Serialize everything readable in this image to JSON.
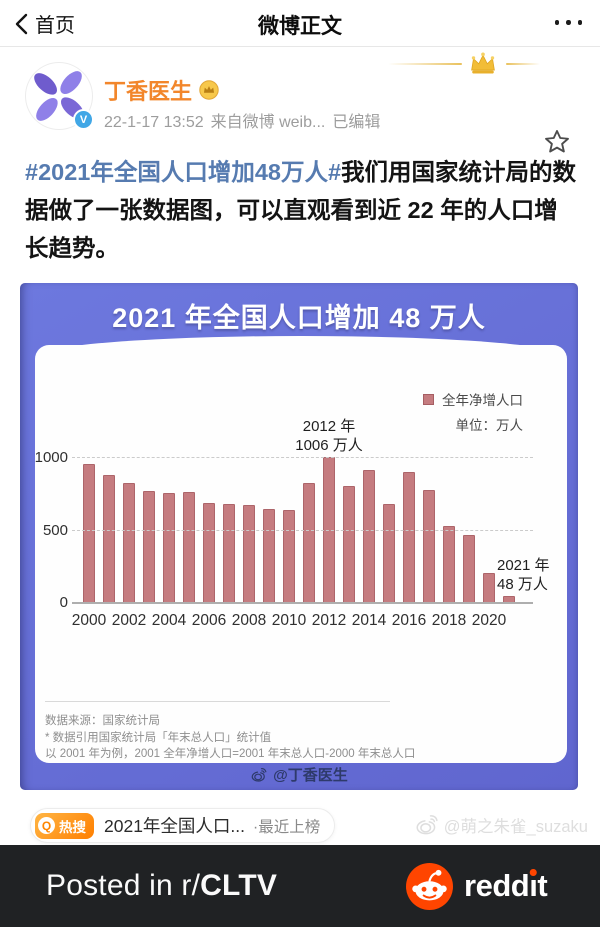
{
  "nav": {
    "back_label": "首页",
    "title": "微博正文"
  },
  "post": {
    "author": "丁香医生",
    "time": "22-1-17 13:52",
    "source": "来自微博 weib...",
    "edited_label": "已编辑",
    "hashtag": "#2021年全国人口增加48万人#",
    "body": "我们用国家统计局的数据做了一张数据图，可以直观看到近 22 年的人口增长趋势。"
  },
  "chart_data": {
    "type": "bar",
    "title": "2021 年全国人口增加 48 万人",
    "legend": [
      "全年净增人口"
    ],
    "legend_position": "top-right",
    "unit_label": "单位：万人",
    "categories": [
      "2000",
      "2001",
      "2002",
      "2003",
      "2004",
      "2005",
      "2006",
      "2007",
      "2008",
      "2009",
      "2010",
      "2011",
      "2012",
      "2013",
      "2014",
      "2015",
      "2016",
      "2017",
      "2018",
      "2019",
      "2020",
      "2021"
    ],
    "values": [
      957,
      884,
      826,
      774,
      761,
      768,
      692,
      681,
      673,
      648,
      641,
      825,
      1006,
      804,
      920,
      680,
      906,
      779,
      530,
      467,
      204,
      48
    ],
    "xlabel": "",
    "ylabel": "",
    "yticks": [
      0,
      500,
      1000
    ],
    "ylim": [
      0,
      1050
    ],
    "x_tick_labels": [
      "2000",
      "2002",
      "2004",
      "2006",
      "2008",
      "2010",
      "2012",
      "2014",
      "2016",
      "2018",
      "2020"
    ],
    "grid": "horizontal dashed at 500 and 1000",
    "annotations": [
      {
        "category": "2012",
        "lines": [
          "2012 年",
          "1006 万人"
        ],
        "placement": "above-bar"
      },
      {
        "category": "2021",
        "lines": [
          "2021 年",
          "48 万人"
        ],
        "placement": "above-right"
      }
    ],
    "source_note": "数据来源：国家统计局",
    "footnotes": [
      "* 数据引用国家统计局「年末总人口」统计值",
      "以 2001 年为例，2001 全年净增人口=2001 年末总人口-2000 年末总人口"
    ],
    "watermark": "@丁香医生"
  },
  "hot_search": {
    "q": "Q",
    "badge": "热搜",
    "text": "2021年全国人口...",
    "suffix": "·最近上榜"
  },
  "page_watermark": "@萌之朱雀_suzaku",
  "reddit_bar": {
    "posted_prefix": "Posted in r/",
    "subreddit": "CLTV",
    "brand": "reddit"
  },
  "colors": {
    "chart_header_bg": "#6066cf",
    "bar": "#c57c80",
    "author_orange": "#f2862b",
    "hashtag_blue": "#567bb0",
    "reddit_orange": "#ff4500",
    "bottom_bar_bg": "#202224"
  }
}
